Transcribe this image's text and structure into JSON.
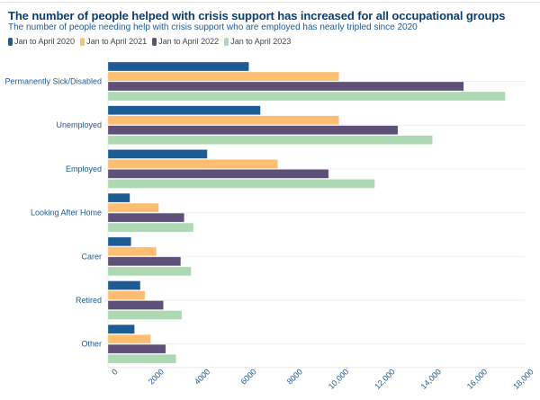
{
  "chart_data": {
    "type": "bar",
    "orientation": "horizontal",
    "title": "The number of people helped with crisis support has increased for all occupational groups",
    "subtitle": "The number of people needing help with crisis support who are employed has nearly tripled since 2020",
    "xlabel": "",
    "ylabel": "",
    "xlim": [
      0,
      18000
    ],
    "xticks": [
      0,
      2000,
      4000,
      6000,
      8000,
      10000,
      12000,
      14000,
      16000,
      18000
    ],
    "xtick_labels": [
      "0",
      "2000",
      "4000",
      "6000",
      "8000",
      "10,000",
      "12,000",
      "14,000",
      "16,000",
      "18,000"
    ],
    "legend_position": "top-left",
    "grid": "horizontal category lines",
    "categories": [
      "Permanently Sick/Disabled",
      "Unemployed",
      "Employed",
      "Looking After Home",
      "Carer",
      "Retired",
      "Other"
    ],
    "series": [
      {
        "name": "Jan to April 2020",
        "color": "#1d5b94",
        "values": [
          6100,
          6600,
          4300,
          950,
          1000,
          1400,
          1150
        ]
      },
      {
        "name": "Jan to April 2021",
        "color": "#fdbe72",
        "values": [
          10000,
          10000,
          7350,
          2200,
          2100,
          1600,
          1850
        ]
      },
      {
        "name": "Jan to April 2022",
        "color": "#5f5078",
        "values": [
          15400,
          12550,
          9550,
          3300,
          3150,
          2400,
          2500
        ]
      },
      {
        "name": "Jan to April 2023",
        "color": "#acd9b2",
        "values": [
          17200,
          14050,
          11550,
          3700,
          3600,
          3200,
          2950
        ]
      }
    ]
  }
}
